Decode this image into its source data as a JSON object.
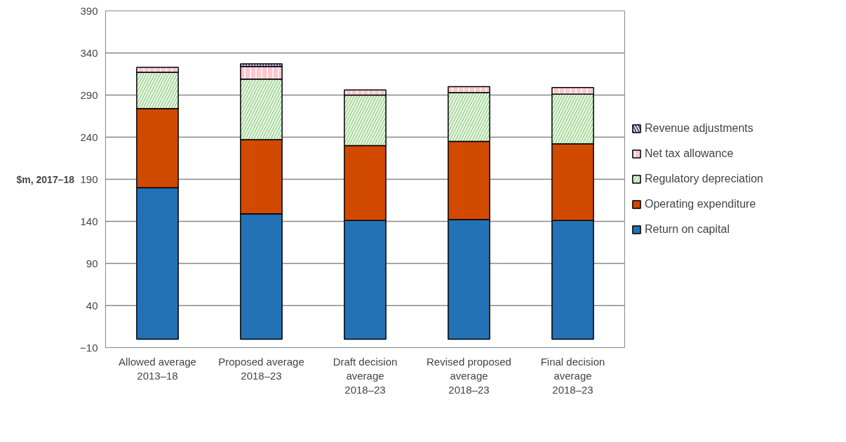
{
  "chart_data": {
    "type": "bar",
    "stacked": true,
    "ylabel": "$m, 2017–18",
    "categories": [
      "Allowed average\n2013–18",
      "Proposed average\n2018–23",
      "Draft decision\naverage\n2018–23",
      "Revised proposed\naverage\n2018–23",
      "Final decision\naverage\n2018–23"
    ],
    "series": [
      {
        "name": "Return on capital",
        "color": "#2372b5",
        "values": [
          180,
          149,
          141,
          142,
          141
        ]
      },
      {
        "name": "Operating expenditure",
        "color": "#d24a00",
        "values": [
          94,
          88,
          89,
          93,
          91
        ]
      },
      {
        "name": "Regulatory depreciation",
        "color": "#a8da9c",
        "values": [
          43,
          72,
          60,
          58,
          59
        ]
      },
      {
        "name": "Net tax allowance",
        "color": "#ffc7ce",
        "values": [
          6,
          15,
          6,
          7,
          8
        ]
      },
      {
        "name": "Revenue adjustments",
        "color": "#5b4a8a",
        "values": [
          null,
          3,
          null,
          null,
          null
        ]
      }
    ],
    "ylim": [
      -10,
      390
    ],
    "yticks": [
      -10,
      40,
      90,
      140,
      190,
      240,
      290,
      340,
      390
    ],
    "grid": "y",
    "legend": "right"
  }
}
